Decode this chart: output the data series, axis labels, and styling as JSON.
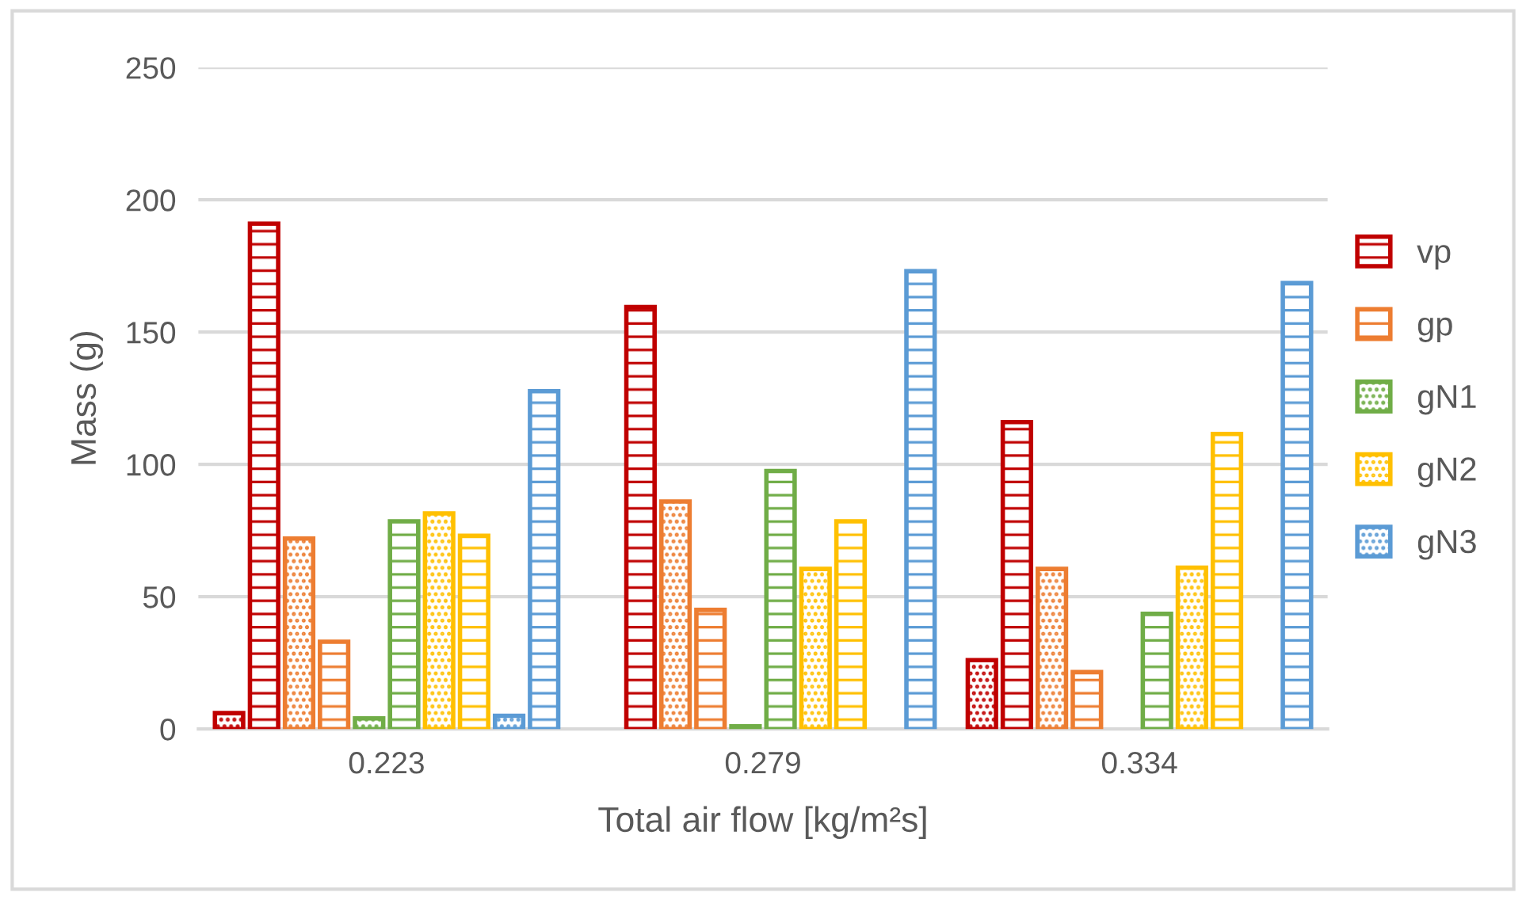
{
  "chart_data": {
    "type": "bar",
    "xlabel": "Total air flow [kg/m²s]",
    "ylabel": "Mass (g)",
    "categories": [
      "0.223",
      "0.279",
      "0.334"
    ],
    "series": [
      {
        "color": "#c00000",
        "values": [
          6,
          null,
          26
        ]
      },
      {
        "name": "vp",
        "color": "#c00000",
        "values": [
          191,
          159.5,
          116
        ]
      },
      {
        "color": "#ed7d31",
        "values": [
          72,
          86,
          60.5
        ]
      },
      {
        "name": "gp",
        "color": "#ed7d31",
        "values": [
          33,
          45,
          21.5
        ]
      },
      {
        "name": "gN1",
        "color": "#70ad47",
        "values": [
          4,
          1,
          null
        ]
      },
      {
        "color": "#70ad47",
        "values": [
          78.5,
          97.5,
          43.5
        ]
      },
      {
        "name": "gN2",
        "color": "#ffc000",
        "values": [
          81.5,
          60.5,
          61
        ]
      },
      {
        "color": "#ffc000",
        "values": [
          73,
          78.5,
          111.5
        ]
      },
      {
        "name": "gN3",
        "color": "#5b9bd5",
        "values": [
          5,
          null,
          null
        ]
      },
      {
        "color": "#5b9bd5",
        "values": [
          127.7,
          173,
          168.5
        ]
      }
    ],
    "ylim": [
      0,
      250
    ],
    "yticks": [
      0,
      50,
      100,
      150,
      200,
      250
    ],
    "grid": "y",
    "legend": "right"
  }
}
